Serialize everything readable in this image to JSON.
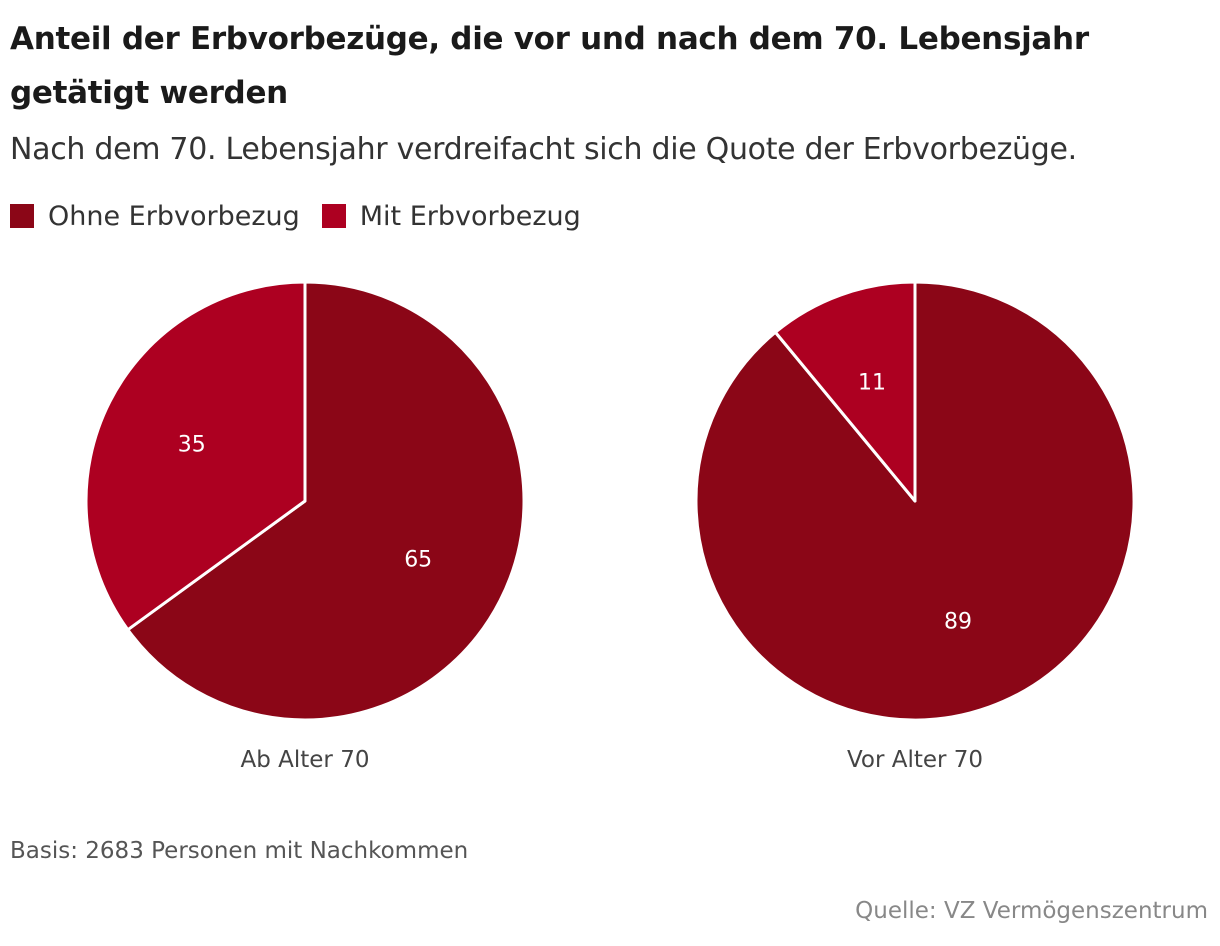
{
  "title": "Anteil der Erbvorbezüge, die vor und nach dem 70. Lebensjahr getätigt werden",
  "subtitle": "Nach dem 70. Lebensjahr verdreifacht sich die Quote der Erbvorbezüge.",
  "colors": {
    "ohne": "#8b0617",
    "mit": "#ad0021",
    "separator": "#ffffff"
  },
  "legend": [
    {
      "label": "Ohne Erbvorbezug",
      "color": "#8b0617"
    },
    {
      "label": "Mit Erbvorbezug",
      "color": "#ad0021"
    }
  ],
  "chart_data": [
    {
      "type": "pie",
      "title": "Ab Alter 70",
      "series": [
        {
          "name": "Ohne Erbvorbezug",
          "value": 65
        },
        {
          "name": "Mit Erbvorbezug",
          "value": 35
        }
      ]
    },
    {
      "type": "pie",
      "title": "Vor Alter 70",
      "series": [
        {
          "name": "Ohne Erbvorbezug",
          "value": 89
        },
        {
          "name": "Mit Erbvorbezug",
          "value": 11
        }
      ]
    }
  ],
  "footnote": "Basis: 2683 Personen mit Nachkommen",
  "source": "Quelle: VZ Vermögenszentrum"
}
